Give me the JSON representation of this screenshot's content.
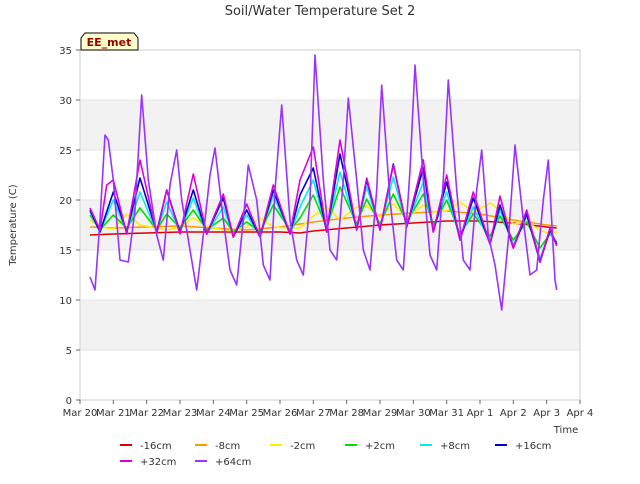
{
  "chart_data": {
    "type": "line",
    "title": "Soil/Water Temperature Set 2",
    "xlabel": "Time",
    "ylabel": "Temperature (C)",
    "station_badge": "EE_met",
    "ylim": [
      0,
      35
    ],
    "yticks": [
      0,
      5,
      10,
      15,
      20,
      25,
      30,
      35
    ],
    "xlim": [
      0,
      15
    ],
    "xticks": [
      {
        "x": 0,
        "label": "Mar 20"
      },
      {
        "x": 1,
        "label": "Mar 21"
      },
      {
        "x": 2,
        "label": "Mar 22"
      },
      {
        "x": 3,
        "label": "Mar 23"
      },
      {
        "x": 4,
        "label": "Mar 24"
      },
      {
        "x": 5,
        "label": "Mar 25"
      },
      {
        "x": 6,
        "label": "Mar 26"
      },
      {
        "x": 7,
        "label": "Mar 27"
      },
      {
        "x": 8,
        "label": "Mar 28"
      },
      {
        "x": 9,
        "label": "Mar 29"
      },
      {
        "x": 10,
        "label": "Mar 30"
      },
      {
        "x": 11,
        "label": "Mar 31"
      },
      {
        "x": 12,
        "label": "Apr 1"
      },
      {
        "x": 13,
        "label": "Apr 2"
      },
      {
        "x": 14,
        "label": "Apr 3"
      },
      {
        "x": 15,
        "label": "Apr 4"
      }
    ],
    "grid": "horizontal bands",
    "legend_placement": "bottom",
    "series": [
      {
        "name": "-16cm",
        "color": "#dd0000",
        "x": [
          0.3,
          1,
          2,
          3,
          4,
          5,
          6,
          6.6,
          7,
          8,
          9,
          10,
          11,
          12,
          13,
          14,
          14.3
        ],
        "y": [
          16.5,
          16.6,
          16.7,
          16.8,
          16.8,
          16.8,
          16.8,
          16.7,
          16.9,
          17.2,
          17.5,
          17.7,
          17.9,
          17.9,
          17.7,
          17.3,
          17.2
        ]
      },
      {
        "name": "-8cm",
        "color": "#ff9900",
        "x": [
          0.3,
          1,
          2,
          3,
          4,
          5,
          6,
          7,
          8,
          9,
          10,
          11,
          12,
          13,
          14,
          14.3
        ],
        "y": [
          17.3,
          17.2,
          17.3,
          17.4,
          17.2,
          17.0,
          17.3,
          17.8,
          18.2,
          18.5,
          18.7,
          18.9,
          18.6,
          18.0,
          17.5,
          17.4
        ]
      },
      {
        "name": "-2cm",
        "color": "#ffee00",
        "x": [
          0.3,
          0.6,
          1,
          1.4,
          1.8,
          2.3,
          2.6,
          3,
          3.4,
          3.8,
          4.3,
          4.6,
          5,
          5.4,
          5.8,
          6.3,
          6.6,
          7,
          7.4,
          7.8,
          8.3,
          8.6,
          9,
          9.4,
          9.8,
          10.3,
          10.6,
          11,
          11.4,
          11.8,
          12.3,
          12.6,
          13,
          13.4,
          13.8,
          14.1,
          14.3
        ],
        "y": [
          18.0,
          17.3,
          17.1,
          18.6,
          17.5,
          17.2,
          17.0,
          17.3,
          18.2,
          17.4,
          17.0,
          16.9,
          17.3,
          18.2,
          17.3,
          17.2,
          17.2,
          18.4,
          19.3,
          18.0,
          19.3,
          19.4,
          18.3,
          19.6,
          18.2,
          19.5,
          18.8,
          18.9,
          19.8,
          18.8,
          19.7,
          19.0,
          17.6,
          17.8,
          17.0,
          16.6,
          16.8
        ]
      },
      {
        "name": "+2cm",
        "color": "#00dd00",
        "x": [
          0.3,
          0.6,
          1,
          1.4,
          1.8,
          2.3,
          2.6,
          3,
          3.4,
          3.8,
          4.3,
          4.6,
          5,
          5.4,
          5.8,
          6.3,
          6.6,
          7,
          7.4,
          7.8,
          8.3,
          8.6,
          9,
          9.4,
          9.8,
          10.3,
          10.6,
          11,
          11.4,
          11.8,
          12.3,
          12.6,
          13,
          13.4,
          13.8,
          14.1,
          14.3
        ],
        "y": [
          18.5,
          17.0,
          18.5,
          17.2,
          19.2,
          17.0,
          18.6,
          17.2,
          19.0,
          17.0,
          18.2,
          16.8,
          17.8,
          16.8,
          19.5,
          17.0,
          18.2,
          20.5,
          17.3,
          21.3,
          17.6,
          20.1,
          17.6,
          20.6,
          17.8,
          20.6,
          17.5,
          20.0,
          16.6,
          18.6,
          16.4,
          18.4,
          16.0,
          17.8,
          15.2,
          16.6,
          15.8
        ]
      },
      {
        "name": "+8cm",
        "color": "#00eeee",
        "x": [
          0.3,
          0.6,
          1,
          1.4,
          1.8,
          2.3,
          2.6,
          3,
          3.4,
          3.8,
          4.3,
          4.6,
          5,
          5.4,
          5.8,
          6.3,
          6.6,
          7,
          7.4,
          7.8,
          8.3,
          8.6,
          9,
          9.4,
          9.8,
          10.3,
          10.6,
          11,
          11.4,
          11.8,
          12.3,
          12.6,
          13,
          13.4,
          13.8,
          14.1,
          14.3
        ],
        "y": [
          18.8,
          16.8,
          20.0,
          16.8,
          20.8,
          16.8,
          19.8,
          16.8,
          20.2,
          16.6,
          19.3,
          16.4,
          18.5,
          16.4,
          20.5,
          16.6,
          19.3,
          22.0,
          17.0,
          22.8,
          17.2,
          21.3,
          17.2,
          22.3,
          17.4,
          21.8,
          17.0,
          20.8,
          16.2,
          19.3,
          15.8,
          19.0,
          15.5,
          18.4,
          14.2,
          16.8,
          15.6
        ]
      },
      {
        "name": "+16cm",
        "color": "#0000cc",
        "x": [
          0.3,
          0.6,
          1,
          1.4,
          1.8,
          2.3,
          2.6,
          3,
          3.4,
          3.8,
          4.3,
          4.6,
          5,
          5.4,
          5.8,
          6.3,
          6.6,
          7,
          7.4,
          7.8,
          8.3,
          8.6,
          9,
          9.4,
          9.8,
          10.3,
          10.6,
          11,
          11.4,
          11.8,
          12.3,
          12.6,
          13,
          13.4,
          13.8,
          14.1,
          14.3
        ],
        "y": [
          19.0,
          16.8,
          20.8,
          16.8,
          22.2,
          16.8,
          21.0,
          16.8,
          21.0,
          16.6,
          20.2,
          16.3,
          19.0,
          16.3,
          21.0,
          16.6,
          20.5,
          23.2,
          16.8,
          24.6,
          17.0,
          22.0,
          17.0,
          23.6,
          17.3,
          23.2,
          16.8,
          21.8,
          16.0,
          20.2,
          15.6,
          19.5,
          15.2,
          18.6,
          13.8,
          17.0,
          15.6
        ]
      },
      {
        "name": "+32cm",
        "color": "#dd00dd",
        "x": [
          0.3,
          0.6,
          0.8,
          1,
          1.4,
          1.8,
          2.3,
          2.6,
          3,
          3.4,
          3.8,
          4.3,
          4.6,
          5,
          5.4,
          5.8,
          6.3,
          6.6,
          7,
          7.4,
          7.8,
          8.3,
          8.6,
          9,
          9.4,
          9.8,
          10.3,
          10.6,
          11,
          11.4,
          11.8,
          12.3,
          12.6,
          13,
          13.4,
          13.8,
          14.1,
          14.3
        ],
        "y": [
          19.2,
          17.0,
          21.5,
          22.0,
          16.6,
          24.0,
          16.6,
          21.0,
          16.6,
          22.6,
          16.6,
          20.6,
          16.3,
          19.6,
          16.3,
          21.5,
          16.6,
          22.0,
          25.3,
          16.8,
          26.0,
          17.0,
          22.2,
          17.0,
          23.5,
          17.3,
          24.0,
          16.8,
          22.5,
          16.0,
          20.8,
          15.6,
          20.4,
          15.2,
          19.0,
          13.8,
          17.2,
          15.4
        ]
      },
      {
        "name": "+64cm",
        "color": "#9933ff",
        "x": [
          0.3,
          0.45,
          0.6,
          0.75,
          0.85,
          1,
          1.2,
          1.45,
          1.65,
          1.85,
          2.05,
          2.3,
          2.5,
          2.7,
          2.9,
          3.05,
          3.3,
          3.5,
          3.7,
          3.9,
          4.05,
          4.3,
          4.5,
          4.7,
          4.9,
          5.05,
          5.3,
          5.5,
          5.7,
          5.85,
          6.05,
          6.3,
          6.5,
          6.7,
          6.9,
          7.05,
          7.3,
          7.5,
          7.7,
          7.9,
          8.05,
          8.3,
          8.5,
          8.7,
          8.9,
          9.05,
          9.3,
          9.5,
          9.7,
          9.9,
          10.05,
          10.3,
          10.5,
          10.7,
          10.9,
          11.05,
          11.3,
          11.5,
          11.7,
          11.9,
          12.05,
          12.25,
          12.45,
          12.65,
          12.85,
          13.05,
          13.3,
          13.5,
          13.7,
          13.9,
          14.05,
          14.25,
          14.3
        ],
        "y": [
          12.3,
          11.0,
          18.0,
          26.5,
          26.0,
          22.0,
          14.0,
          13.8,
          19.0,
          30.5,
          22.0,
          16.5,
          14.0,
          21.5,
          25.0,
          20.0,
          15.0,
          11.0,
          16.5,
          22.5,
          25.2,
          18.0,
          13.0,
          11.5,
          18.0,
          23.5,
          20.0,
          13.5,
          12.0,
          21.0,
          29.5,
          18.0,
          14.0,
          12.5,
          20.0,
          34.5,
          22.0,
          15.0,
          14.0,
          22.0,
          30.2,
          22.0,
          15.0,
          13.0,
          21.0,
          31.5,
          20.0,
          14.0,
          13.0,
          23.0,
          33.5,
          22.0,
          14.5,
          13.0,
          22.0,
          32.0,
          21.0,
          14.0,
          13.0,
          21.0,
          25.0,
          16.5,
          13.5,
          9.0,
          16.0,
          25.5,
          18.0,
          12.5,
          13.0,
          20.0,
          24.0,
          12.0,
          11.0
        ]
      }
    ]
  }
}
